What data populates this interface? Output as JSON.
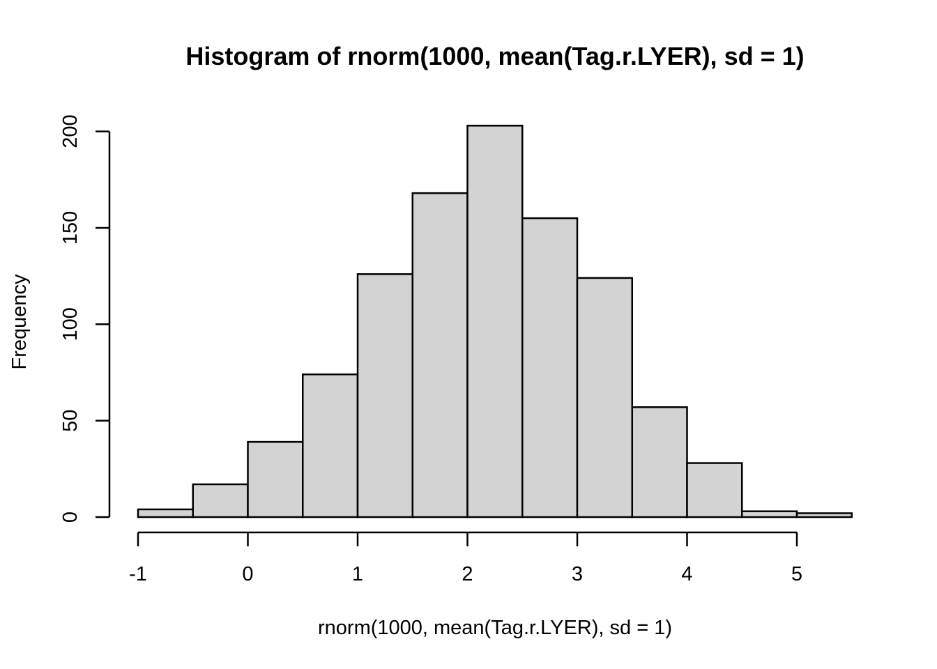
{
  "chart_data": {
    "type": "bar",
    "title": "Histogram of rnorm(1000, mean(Tag.r.LYER), sd = 1)",
    "xlabel": "rnorm(1000, mean(Tag.r.LYER), sd = 1)",
    "ylabel": "Frequency",
    "bins": [
      {
        "x0": -1.0,
        "x1": -0.5,
        "count": 4
      },
      {
        "x0": -0.5,
        "x1": 0.0,
        "count": 17
      },
      {
        "x0": 0.0,
        "x1": 0.5,
        "count": 39
      },
      {
        "x0": 0.5,
        "x1": 1.0,
        "count": 74
      },
      {
        "x0": 1.0,
        "x1": 1.5,
        "count": 126
      },
      {
        "x0": 1.5,
        "x1": 2.0,
        "count": 168
      },
      {
        "x0": 2.0,
        "x1": 2.5,
        "count": 203
      },
      {
        "x0": 2.5,
        "x1": 3.0,
        "count": 155
      },
      {
        "x0": 3.0,
        "x1": 3.5,
        "count": 124
      },
      {
        "x0": 3.5,
        "x1": 4.0,
        "count": 57
      },
      {
        "x0": 4.0,
        "x1": 4.5,
        "count": 28
      },
      {
        "x0": 4.5,
        "x1": 5.0,
        "count": 3
      },
      {
        "x0": 5.0,
        "x1": 5.5,
        "count": 2
      }
    ],
    "x_ticks": [
      -1,
      0,
      1,
      2,
      3,
      4,
      5
    ],
    "x_tick_labels": [
      "-1",
      "0",
      "1",
      "2",
      "3",
      "4",
      "5"
    ],
    "y_ticks": [
      0,
      50,
      100,
      150,
      200
    ],
    "y_tick_labels": [
      "0",
      "50",
      "100",
      "150",
      "200"
    ],
    "xlim": [
      -1,
      5.5
    ],
    "ylim": [
      0,
      203
    ],
    "grid": false,
    "legend": "none",
    "bar_fill": "#d3d3d3",
    "bar_stroke": "#000000"
  }
}
